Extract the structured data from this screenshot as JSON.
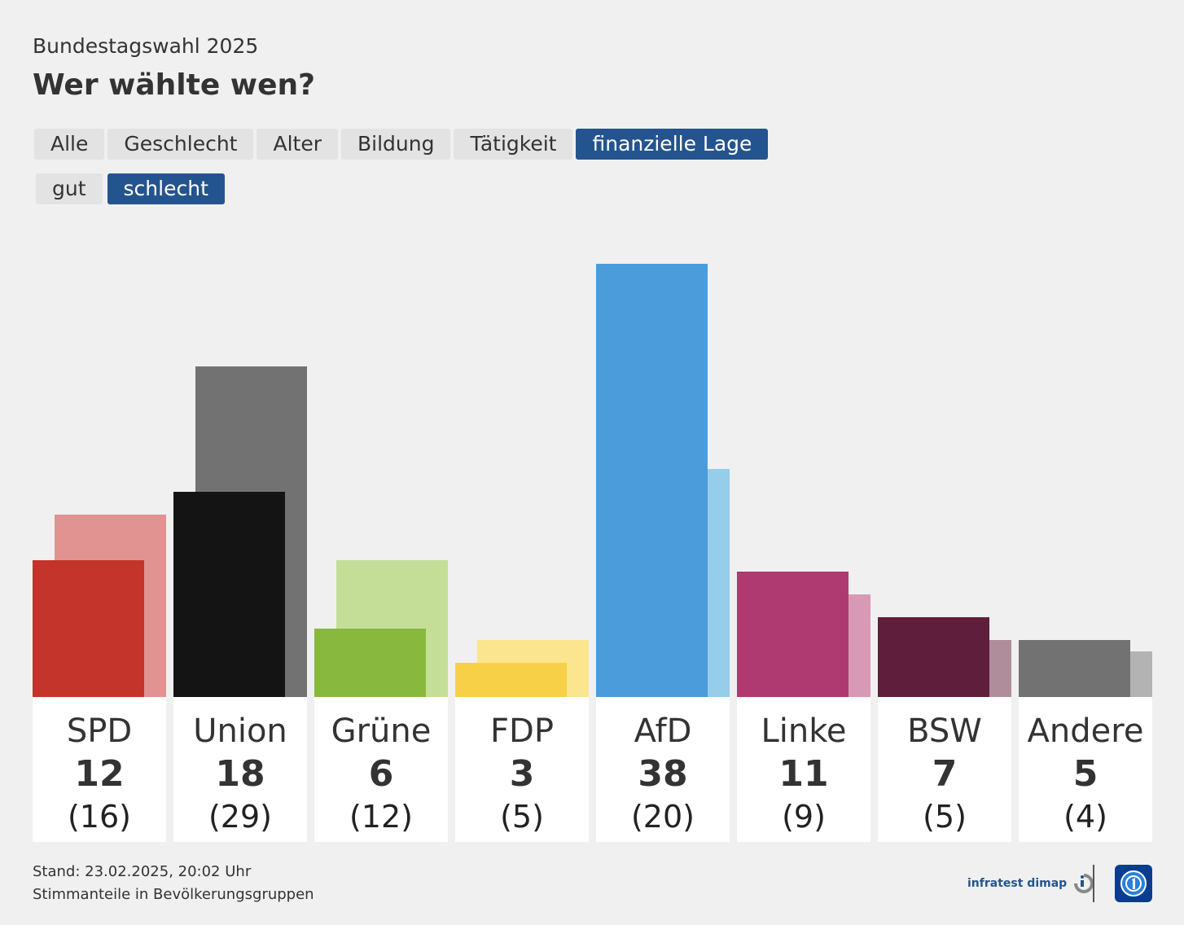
{
  "header": {
    "kicker": "Bundestagswahl 2025",
    "title": "Wer wählte wen?"
  },
  "tabs": [
    {
      "label": "Alle",
      "active": false
    },
    {
      "label": "Geschlecht",
      "active": false
    },
    {
      "label": "Alter",
      "active": false
    },
    {
      "label": "Bildung",
      "active": false
    },
    {
      "label": "Tätigkeit",
      "active": false
    },
    {
      "label": "finanzielle Lage",
      "active": true
    }
  ],
  "subtabs": [
    {
      "label": "gut",
      "active": false
    },
    {
      "label": "schlecht",
      "active": true
    }
  ],
  "chart_data": {
    "type": "bar",
    "categories": [
      "SPD",
      "Union",
      "Grüne",
      "FDP",
      "AfD",
      "Linke",
      "BSW",
      "Andere"
    ],
    "series": [
      {
        "values": [
          12,
          18,
          6,
          3,
          38,
          11,
          7,
          5
        ]
      },
      {
        "values": [
          16,
          29,
          12,
          5,
          20,
          9,
          5,
          4
        ]
      }
    ],
    "value_labels": [
      "12",
      "18",
      "6",
      "3",
      "38",
      "11",
      "7",
      "5"
    ],
    "comparison_labels": [
      "(16)",
      "(29)",
      "(12)",
      "(5)",
      "(20)",
      "(9)",
      "(5)",
      "(4)"
    ],
    "colors": {
      "main": [
        "#c4342b",
        "#141414",
        "#89b83e",
        "#f8d048",
        "#4a9cdb",
        "#ae3a71",
        "#5f1e3c",
        "#727272"
      ],
      "comparison": [
        "#e09390",
        "#737272",
        "#c4de98",
        "#fce58f",
        "#96cdea",
        "#d899b7",
        "#b08d9b",
        "#b3b3b3"
      ]
    },
    "ylim": [
      0,
      38
    ],
    "grid": false,
    "legend": "none"
  },
  "footer": {
    "stand": "Stand: 23.02.2025, 20:02 Uhr",
    "note": "Stimmanteile in Bevölkerungsgruppen",
    "source_logo": "infratest dimap"
  },
  "icons": {
    "infratest": "infratest-dimap-logo",
    "broadcaster": "ard-logo-icon"
  }
}
